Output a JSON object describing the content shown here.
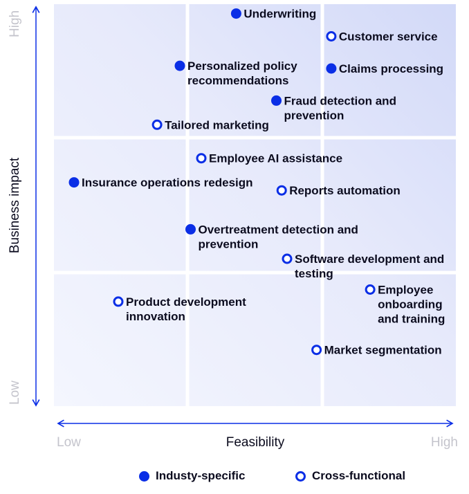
{
  "chart_data": {
    "type": "scatter",
    "xlabel": "Feasibility",
    "ylabel": "Business impact",
    "x_low": "Low",
    "x_high": "High",
    "y_low": "Low",
    "y_high": "High",
    "xlim": [
      0,
      3
    ],
    "ylim": [
      0,
      3
    ],
    "grid": true,
    "legend_position": "bottom",
    "colors": {
      "accent": "#0a2ee6",
      "bg": "#e6e9fb"
    },
    "legend": [
      {
        "label": "Industy-specific",
        "marker": "filled"
      },
      {
        "label": "Cross-functional",
        "marker": "hollow"
      }
    ],
    "points": [
      {
        "lines": [
          "Underwriting"
        ],
        "x": 1.36,
        "y": 2.93,
        "marker": "filled"
      },
      {
        "lines": [
          "Customer service"
        ],
        "x": 2.07,
        "y": 2.76,
        "marker": "hollow"
      },
      {
        "lines": [
          "Personalized policy",
          "recommendations"
        ],
        "x": 0.94,
        "y": 2.54,
        "marker": "filled"
      },
      {
        "lines": [
          "Claims processing"
        ],
        "x": 2.07,
        "y": 2.52,
        "marker": "filled"
      },
      {
        "lines": [
          "Fraud detection and",
          "prevention"
        ],
        "x": 1.66,
        "y": 2.28,
        "marker": "filled"
      },
      {
        "lines": [
          "Tailored marketing"
        ],
        "x": 0.77,
        "y": 2.1,
        "marker": "hollow"
      },
      {
        "lines": [
          "Employee AI assistance"
        ],
        "x": 1.1,
        "y": 1.85,
        "marker": "hollow"
      },
      {
        "lines": [
          "Insurance operations redesign"
        ],
        "x": 0.15,
        "y": 1.67,
        "marker": "filled"
      },
      {
        "lines": [
          "Reports automation"
        ],
        "x": 1.7,
        "y": 1.61,
        "marker": "hollow"
      },
      {
        "lines": [
          "Overtreatment detection and",
          "prevention"
        ],
        "x": 1.02,
        "y": 1.32,
        "marker": "filled"
      },
      {
        "lines": [
          "Software development and",
          "testing"
        ],
        "x": 1.74,
        "y": 1.1,
        "marker": "hollow"
      },
      {
        "lines": [
          "Employee",
          "onboarding",
          "and training"
        ],
        "x": 2.36,
        "y": 0.87,
        "marker": "hollow"
      },
      {
        "lines": [
          "Product development",
          "innovation"
        ],
        "x": 0.48,
        "y": 0.78,
        "marker": "hollow"
      },
      {
        "lines": [
          "Market segmentation"
        ],
        "x": 1.96,
        "y": 0.42,
        "marker": "hollow"
      }
    ]
  }
}
